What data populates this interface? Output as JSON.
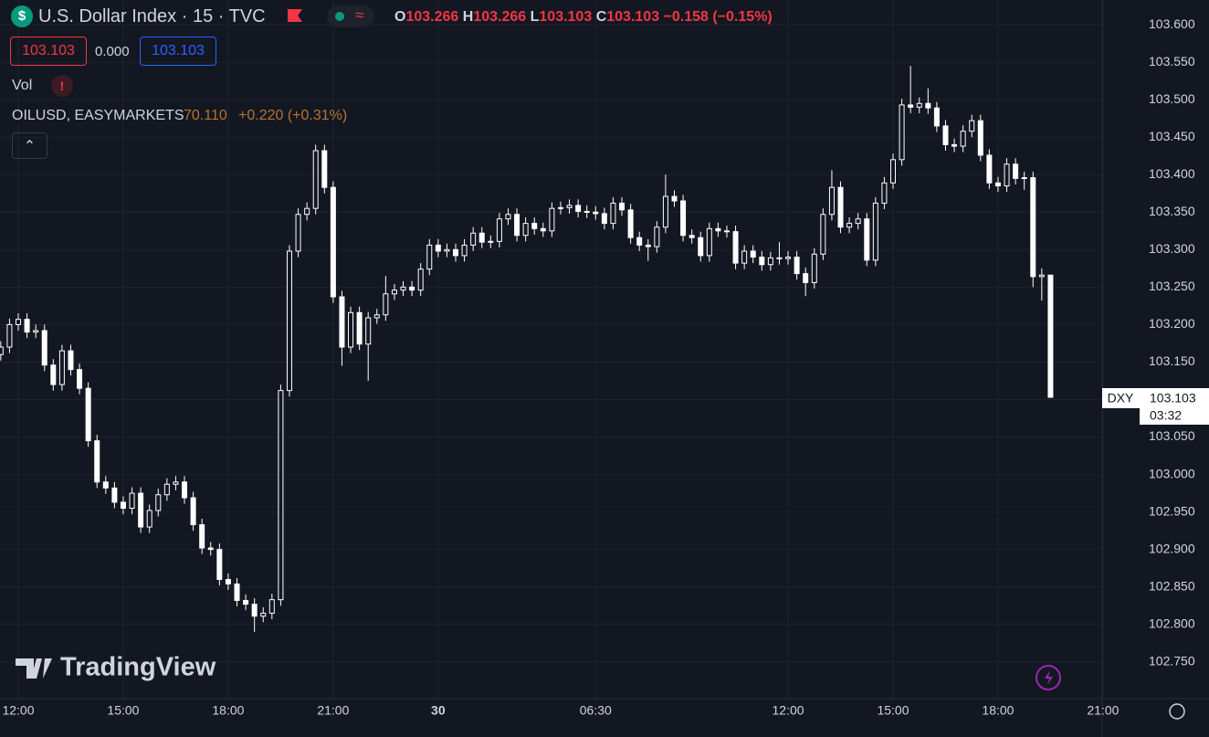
{
  "header": {
    "icon": "$",
    "title": "U.S. Dollar Index · 15 · TVC",
    "o_label": "O",
    "o": "103.266",
    "h_label": "H",
    "h": "103.266",
    "l_label": "L",
    "l": "103.103",
    "c_label": "C",
    "c": "103.103",
    "change": "−0.158 (−0.15%)",
    "sell": "103.103",
    "spread": "0.000",
    "buy": "103.103",
    "vol": "Vol",
    "vol_alert": "!",
    "overlay_name": "OILUSD, EASYMARKETS",
    "overlay_price": "70.110",
    "overlay_change": "+0.220 (+0.31%)"
  },
  "price_tag": {
    "symbol": "DXY",
    "price": "103.103",
    "countdown": "03:32"
  },
  "watermark": "TradingView",
  "chart_data": {
    "type": "candlestick",
    "color": "#ffffff",
    "grid": true,
    "categories": [
      null,
      null,
      "12:00",
      null,
      null,
      null,
      null,
      null,
      null,
      null,
      null,
      null,
      null,
      null,
      "15:00",
      null,
      null,
      null,
      null,
      null,
      null,
      null,
      null,
      null,
      null,
      null,
      "18:00",
      null,
      null,
      null,
      null,
      null,
      null,
      null,
      null,
      null,
      null,
      null,
      "21:00",
      null,
      null,
      null,
      null,
      null,
      null,
      null,
      null,
      null,
      null,
      null,
      "30",
      null,
      null,
      null,
      null,
      null,
      null,
      null,
      null,
      null,
      null,
      null,
      null,
      null,
      null,
      null,
      null,
      null,
      "06:30",
      null,
      null,
      null,
      null,
      null,
      null,
      null,
      null,
      null,
      null,
      null,
      null,
      null,
      null,
      null,
      null,
      null,
      null,
      null,
      null,
      null,
      "12:00",
      null,
      null,
      null,
      null,
      null,
      null,
      null,
      null,
      null,
      null,
      null,
      "15:00",
      null,
      null,
      null,
      null,
      null,
      null,
      null,
      null,
      null,
      null,
      null,
      "18:00",
      null,
      null,
      null,
      null,
      null,
      null,
      null,
      null,
      null,
      null,
      null,
      "21:00"
    ],
    "open": [
      103.16,
      103.17,
      103.2,
      103.207,
      103.19,
      103.192,
      103.146,
      103.12,
      103.165,
      103.14,
      103.115,
      103.045,
      102.99,
      102.982,
      102.963,
      102.955,
      102.975,
      102.93,
      102.952,
      102.973,
      102.987,
      102.99,
      102.969,
      102.933,
      102.902,
      102.9,
      102.86,
      102.854,
      102.832,
      102.827,
      102.811,
      102.815,
      102.833,
      103.112,
      103.298,
      103.347,
      103.355,
      103.432,
      103.383,
      103.237,
      103.17,
      103.216,
      103.174,
      103.209,
      103.213,
      103.241,
      103.246,
      103.25,
      103.246,
      103.274,
      103.306,
      103.298,
      103.3,
      103.292,
      103.306,
      103.322,
      103.31,
      103.311,
      103.341,
      103.347,
      103.319,
      103.335,
      103.328,
      103.325,
      103.355,
      103.356,
      103.359,
      103.351,
      103.35,
      103.348,
      103.335,
      103.362,
      103.353,
      103.316,
      103.306,
      103.304,
      103.33,
      103.371,
      103.365,
      103.319,
      103.316,
      103.292,
      103.328,
      103.325,
      103.324,
      103.282,
      103.298,
      103.29,
      103.28,
      103.289,
      103.288,
      103.29,
      103.268,
      103.256,
      103.294,
      103.347,
      103.383,
      103.33,
      103.335,
      103.341,
      103.286,
      103.362,
      103.389,
      103.42,
      103.493,
      103.49,
      103.495,
      103.489,
      103.465,
      103.44,
      103.438,
      103.458,
      103.472,
      103.426,
      103.389,
      103.385,
      103.414,
      103.395,
      103.396,
      103.264,
      103.266,
      null,
      null,
      null,
      null,
      null,
      null
    ],
    "high": [
      103.178,
      103.208,
      103.215,
      103.215,
      103.2,
      103.2,
      103.154,
      103.173,
      103.173,
      103.148,
      103.123,
      103.053,
      102.998,
      102.99,
      102.971,
      102.983,
      102.983,
      102.96,
      102.981,
      102.995,
      102.998,
      102.998,
      102.977,
      102.941,
      102.91,
      102.908,
      102.868,
      102.862,
      102.84,
      102.835,
      102.823,
      102.841,
      103.12,
      103.306,
      103.355,
      103.363,
      103.44,
      103.44,
      103.391,
      103.245,
      103.224,
      103.224,
      103.217,
      103.221,
      103.265,
      103.254,
      103.258,
      103.258,
      103.282,
      103.314,
      103.314,
      103.308,
      103.308,
      103.314,
      103.33,
      103.33,
      103.319,
      103.349,
      103.355,
      103.355,
      103.343,
      103.343,
      103.336,
      103.363,
      103.364,
      103.367,
      103.367,
      103.359,
      103.358,
      103.356,
      103.37,
      103.37,
      103.361,
      103.324,
      103.314,
      103.338,
      103.4,
      103.379,
      103.373,
      103.327,
      103.324,
      103.336,
      103.336,
      103.332,
      103.332,
      103.306,
      103.306,
      103.298,
      103.297,
      103.31,
      103.298,
      103.298,
      103.276,
      103.302,
      103.355,
      103.406,
      103.391,
      103.343,
      103.349,
      103.349,
      103.37,
      103.397,
      103.428,
      103.501,
      103.545,
      103.503,
      103.515,
      103.497,
      103.473,
      103.448,
      103.466,
      103.48,
      103.48,
      103.434,
      103.397,
      103.422,
      103.422,
      103.404,
      103.404,
      103.275,
      103.266,
      null,
      null,
      null,
      null,
      null,
      null
    ],
    "low": [
      103.152,
      103.162,
      103.192,
      103.182,
      103.182,
      103.138,
      103.112,
      103.112,
      103.132,
      103.107,
      103.037,
      102.982,
      102.974,
      102.955,
      102.947,
      102.947,
      102.922,
      102.922,
      102.944,
      102.965,
      102.979,
      102.961,
      102.925,
      102.894,
      102.892,
      102.852,
      102.846,
      102.824,
      102.819,
      102.79,
      102.803,
      102.807,
      102.825,
      103.104,
      103.29,
      103.339,
      103.347,
      103.375,
      103.229,
      103.145,
      103.162,
      103.166,
      103.125,
      103.201,
      103.205,
      103.233,
      103.238,
      103.238,
      103.238,
      103.266,
      103.29,
      103.29,
      103.284,
      103.284,
      103.298,
      103.302,
      103.302,
      103.303,
      103.333,
      103.311,
      103.311,
      103.32,
      103.317,
      103.317,
      103.347,
      103.348,
      103.343,
      103.342,
      103.34,
      103.327,
      103.327,
      103.345,
      103.308,
      103.298,
      103.285,
      103.296,
      103.322,
      103.357,
      103.311,
      103.308,
      103.284,
      103.284,
      103.317,
      103.316,
      103.274,
      103.274,
      103.282,
      103.272,
      103.272,
      103.28,
      103.28,
      103.26,
      103.238,
      103.248,
      103.286,
      103.339,
      103.322,
      103.322,
      103.327,
      103.278,
      103.278,
      103.354,
      103.381,
      103.412,
      103.482,
      103.482,
      103.481,
      103.457,
      103.432,
      103.43,
      103.43,
      103.45,
      103.418,
      103.381,
      103.377,
      103.377,
      103.387,
      103.38,
      103.25,
      103.232,
      103.103,
      null,
      null,
      null,
      null,
      null,
      null
    ],
    "close": [
      103.17,
      103.2,
      103.207,
      103.19,
      103.192,
      103.146,
      103.12,
      103.165,
      103.14,
      103.115,
      103.045,
      102.99,
      102.982,
      102.963,
      102.955,
      102.975,
      102.93,
      102.952,
      102.973,
      102.987,
      102.99,
      102.969,
      102.933,
      102.902,
      102.9,
      102.86,
      102.854,
      102.832,
      102.827,
      102.811,
      102.815,
      102.833,
      103.112,
      103.298,
      103.347,
      103.355,
      103.432,
      103.383,
      103.237,
      103.17,
      103.216,
      103.174,
      103.209,
      103.213,
      103.241,
      103.246,
      103.25,
      103.246,
      103.274,
      103.306,
      103.298,
      103.3,
      103.292,
      103.306,
      103.322,
      103.31,
      103.311,
      103.341,
      103.347,
      103.319,
      103.335,
      103.328,
      103.325,
      103.355,
      103.356,
      103.359,
      103.351,
      103.35,
      103.348,
      103.335,
      103.362,
      103.353,
      103.316,
      103.306,
      103.304,
      103.33,
      103.371,
      103.365,
      103.319,
      103.316,
      103.292,
      103.328,
      103.325,
      103.324,
      103.282,
      103.298,
      103.29,
      103.28,
      103.289,
      103.288,
      103.29,
      103.268,
      103.256,
      103.294,
      103.347,
      103.383,
      103.33,
      103.335,
      103.341,
      103.286,
      103.362,
      103.389,
      103.42,
      103.493,
      103.49,
      103.495,
      103.489,
      103.465,
      103.44,
      103.438,
      103.458,
      103.472,
      103.426,
      103.389,
      103.385,
      103.414,
      103.395,
      103.396,
      103.264,
      103.266,
      103.103,
      null,
      null,
      null,
      null,
      null,
      null
    ],
    "ylim": [
      102.701,
      103.633
    ],
    "yticks": [
      {
        "value": 102.75,
        "label": "102.750"
      },
      {
        "value": 102.8,
        "label": "102.800"
      },
      {
        "value": 102.85,
        "label": "102.850"
      },
      {
        "value": 102.9,
        "label": "102.900"
      },
      {
        "value": 102.95,
        "label": "102.950"
      },
      {
        "value": 103.0,
        "label": "103.000"
      },
      {
        "value": 103.05,
        "label": "103.050"
      },
      {
        "value": 103.1,
        "label": "103.100"
      },
      {
        "value": 103.15,
        "label": "103.150"
      },
      {
        "value": 103.2,
        "label": "103.200"
      },
      {
        "value": 103.25,
        "label": "103.250"
      },
      {
        "value": 103.3,
        "label": "103.300"
      },
      {
        "value": 103.35,
        "label": "103.350"
      },
      {
        "value": 103.4,
        "label": "103.400"
      },
      {
        "value": 103.45,
        "label": "103.450"
      },
      {
        "value": 103.5,
        "label": "103.500"
      },
      {
        "value": 103.55,
        "label": "103.550"
      },
      {
        "value": 103.6,
        "label": "103.600"
      }
    ]
  }
}
